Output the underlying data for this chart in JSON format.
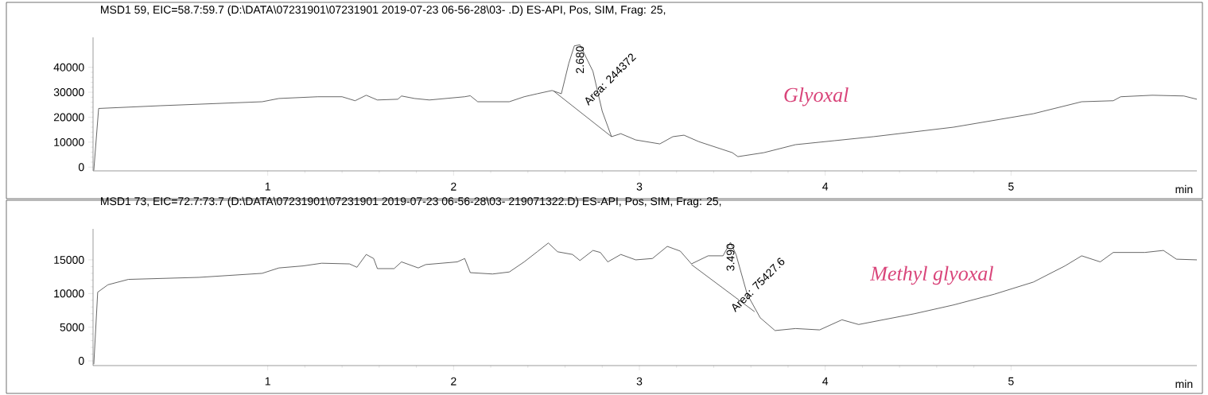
{
  "chart_data": [
    {
      "type": "line",
      "title": "MSD1 59, EIC=58.7:59.7 (D:\\DATA\\07231901\\07231901 2019-07-23 06-56-28\\03-   .D)    ES-API, Pos, SIM, Frag: 25,",
      "xlabel": "min",
      "xlim": [
        0.06,
        6.0
      ],
      "xticks": [
        1,
        2,
        3,
        4,
        5
      ],
      "ylim": [
        -1500,
        52000
      ],
      "yticks": [
        0,
        10000,
        20000,
        30000,
        40000
      ],
      "series": [
        {
          "color": "#404040",
          "x": [
            0.064,
            0.09,
            0.42,
            0.97,
            1.06,
            1.27,
            1.4,
            1.47,
            1.53,
            1.59,
            1.7,
            1.72,
            1.79,
            1.87,
            2.06,
            2.09,
            2.13,
            2.3,
            2.38,
            2.45,
            2.53,
            2.58,
            2.62,
            2.65,
            2.68,
            2.75,
            2.8,
            2.85,
            2.9,
            2.98,
            3.11,
            3.18,
            3.24,
            3.32,
            3.5,
            3.53,
            3.67,
            3.84,
            4.05,
            4.26,
            4.69,
            5.12,
            5.38,
            5.55,
            5.59,
            5.76,
            5.93,
            6.0
          ],
          "values": [
            -1300,
            23500,
            24600,
            26200,
            27500,
            28200,
            28200,
            26600,
            28800,
            26900,
            27200,
            28500,
            27500,
            26900,
            28200,
            28600,
            26200,
            26200,
            28200,
            29400,
            30700,
            29400,
            41600,
            48600,
            49000,
            38400,
            22400,
            12200,
            13400,
            10900,
            9300,
            12200,
            12800,
            10200,
            5800,
            4200,
            5800,
            9000,
            10600,
            12200,
            16000,
            21400,
            26200,
            26600,
            28200,
            28800,
            28500,
            27200
          ]
        },
        {
          "color": "#404040",
          "x": [
            2.54,
            2.85
          ],
          "values": [
            30400,
            12200
          ]
        }
      ],
      "annotations": [
        {
          "text": "2.680",
          "x": 2.68,
          "y": 49000
        },
        "Area: 244372",
        "Glyoxal"
      ]
    },
    {
      "type": "line",
      "title": "MSD1 73, EIC=72.7:73.7 (D:\\DATA\\07231901\\07231901 2019-07-23 06-56-28\\03-   219071322.D)    ES-API, Pos, SIM, Frag: 25,",
      "xlabel": "min",
      "xlim": [
        0.06,
        6.0
      ],
      "xticks": [
        1,
        2,
        3,
        4,
        5
      ],
      "ylim": [
        -700,
        19600
      ],
      "yticks": [
        0,
        5000,
        10000,
        15000
      ],
      "series": [
        {
          "color": "#404040",
          "x": [
            0.064,
            0.085,
            0.14,
            0.25,
            0.63,
            0.97,
            1.06,
            1.19,
            1.29,
            1.44,
            1.48,
            1.53,
            1.57,
            1.59,
            1.68,
            1.72,
            1.81,
            1.85,
            2.02,
            2.06,
            2.09,
            2.21,
            2.3,
            2.38,
            2.45,
            2.51,
            2.56,
            2.64,
            2.68,
            2.75,
            2.79,
            2.83,
            2.9,
            2.98,
            3.07,
            3.15,
            3.22,
            3.28,
            3.37,
            3.45,
            3.49,
            3.52,
            3.58,
            3.65,
            3.73,
            3.84,
            3.97,
            4.09,
            4.18,
            4.48,
            4.69,
            4.91,
            5.12,
            5.29,
            5.38,
            5.48,
            5.55,
            5.72,
            5.82,
            5.89,
            6.0
          ],
          "values": [
            -500,
            10200,
            11300,
            12100,
            12400,
            13000,
            13800,
            14100,
            14500,
            14400,
            13900,
            15800,
            15200,
            13700,
            13700,
            14700,
            13800,
            14300,
            14700,
            15200,
            13100,
            12900,
            13200,
            14700,
            16200,
            17500,
            16200,
            15800,
            14900,
            16400,
            16100,
            14700,
            15800,
            15000,
            15200,
            17000,
            16300,
            14400,
            15600,
            15600,
            17600,
            15800,
            9900,
            6400,
            4500,
            4800,
            4600,
            6100,
            5400,
            7000,
            8300,
            9900,
            11700,
            14100,
            15600,
            14700,
            16100,
            16100,
            16400,
            15100,
            15000
          ]
        },
        {
          "color": "#404040",
          "x": [
            3.28,
            3.62
          ],
          "values": [
            14300,
            7300
          ]
        }
      ],
      "annotations": [
        {
          "text": "3.490",
          "x": 3.49,
          "y": 17600
        },
        "Area: 75427.6",
        "Methyl glyoxal"
      ]
    }
  ]
}
